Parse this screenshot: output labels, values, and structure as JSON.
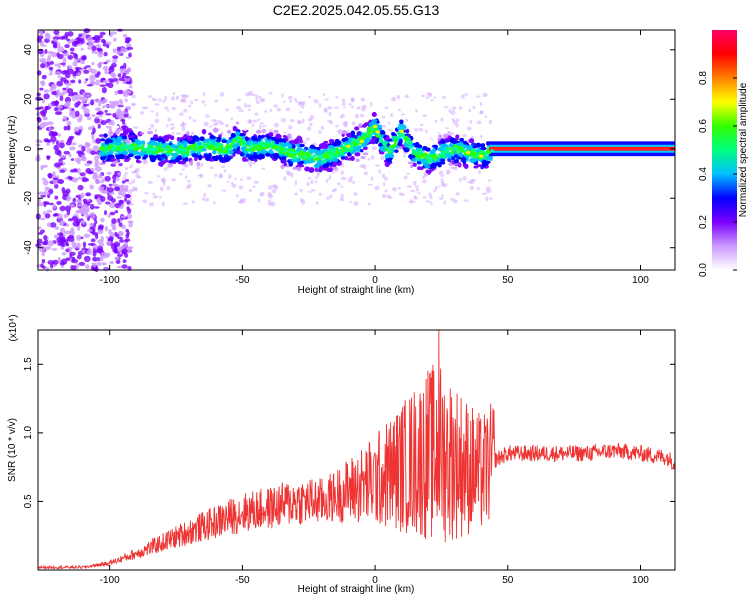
{
  "title": "C2E2.2025.042.05.55.G13",
  "chart_data": [
    {
      "type": "heatmap",
      "xlabel": "Height of straight line (km)",
      "ylabel": "Frequency (Hz)",
      "xlim": [
        -127,
        113
      ],
      "ylim": [
        -49,
        48
      ],
      "x_ticks": [
        -100,
        -50,
        0,
        50,
        100
      ],
      "y_ticks": [
        -40,
        -20,
        0,
        20,
        40
      ],
      "colorbar": {
        "label": "Normalized spectral amplitude",
        "range": [
          0,
          1
        ],
        "ticks": [
          "0.0",
          "0.2",
          "0.4",
          "0.6",
          "0.8"
        ],
        "colors": [
          "#ffffff",
          "#cc99ff",
          "#7a00ff",
          "#0000ff",
          "#00bfff",
          "#00ff80",
          "#33ff00",
          "#ffff00",
          "#ff8000",
          "#ff0000",
          "#ff0066"
        ]
      },
      "ridge": {
        "description_points_x": [
          -103,
          -95,
          -85,
          -75,
          -65,
          -55,
          -52,
          -48,
          -40,
          -30,
          -20,
          -10,
          -5,
          0,
          5,
          10,
          15,
          20,
          30,
          40,
          45,
          113
        ],
        "frequency_y": [
          0,
          1,
          0,
          -1,
          1,
          0,
          4,
          0,
          1,
          -2,
          -4,
          1,
          3,
          9,
          -2,
          7,
          -2,
          -4,
          0,
          -3,
          0,
          0
        ]
      }
    },
    {
      "type": "line",
      "xlabel": "Height of straight line (km)",
      "ylabel": "SNR (10 * v/v)",
      "multiplier": "(x10⁴)",
      "xlim": [
        -127,
        113
      ],
      "ylim": [
        0,
        1.75
      ],
      "x_ticks": [
        "-100",
        "-50",
        "0",
        "50",
        "100"
      ],
      "y_ticks": [
        "0.5",
        "1.0",
        "1.5"
      ],
      "color": "#ee3333",
      "envelope": {
        "x": [
          -127,
          -110,
          -100,
          -90,
          -80,
          -70,
          -60,
          -50,
          -40,
          -30,
          -20,
          -10,
          0,
          10,
          20,
          25,
          30,
          40,
          45,
          50,
          60,
          70,
          80,
          90,
          100,
          110,
          113
        ],
        "y": [
          0.02,
          0.02,
          0.05,
          0.12,
          0.2,
          0.28,
          0.35,
          0.42,
          0.45,
          0.5,
          0.5,
          0.58,
          0.65,
          0.75,
          0.85,
          0.85,
          0.8,
          0.7,
          0.8,
          0.85,
          0.85,
          0.85,
          0.85,
          0.87,
          0.85,
          0.82,
          0.78
        ]
      },
      "peak": {
        "x": 24,
        "y": 1.75
      }
    }
  ]
}
